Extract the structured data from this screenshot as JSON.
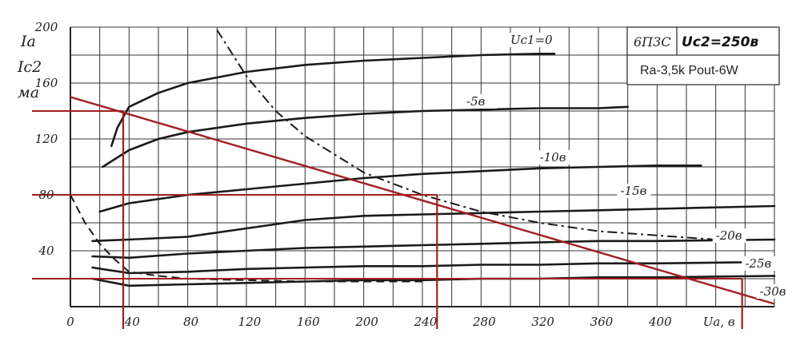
{
  "chart_data": {
    "type": "line",
    "tube": "6П3С",
    "screen_voltage_label": "Uc2=250в",
    "note": "Ra-3,5k  Pout-6W",
    "y_axis_labels": [
      "Ia",
      "Ic2",
      "ма"
    ],
    "x_axis_label": "Ua, в",
    "xlim": [
      0,
      480
    ],
    "ylim": [
      0,
      200
    ],
    "x_ticks": [
      0,
      40,
      80,
      120,
      160,
      200,
      240,
      280,
      320,
      360,
      400,
      440
    ],
    "x_tick_labels": [
      "0",
      "40",
      "80",
      "120",
      "160",
      "200",
      "240",
      "280",
      "320",
      "360",
      "400",
      "Ua, в"
    ],
    "y_ticks": [
      40,
      80,
      120,
      160,
      200
    ],
    "y_tick_labels": [
      "40",
      "80",
      "120",
      "160",
      "200"
    ],
    "grid": true,
    "plate_curves": [
      {
        "label": "Uc1=0",
        "x": [
          28,
          32,
          40,
          60,
          80,
          120,
          160,
          200,
          240,
          280,
          320,
          330
        ],
        "y": [
          115,
          128,
          143,
          153,
          160,
          168,
          173,
          176,
          178,
          180,
          181,
          181
        ]
      },
      {
        "label": "-5в",
        "x": [
          22,
          40,
          60,
          80,
          120,
          160,
          200,
          240,
          280,
          320,
          360,
          380
        ],
        "y": [
          100,
          112,
          120,
          125,
          131,
          135,
          138,
          140,
          141,
          142,
          142,
          143
        ]
      },
      {
        "label": "-10в",
        "x": [
          20,
          40,
          80,
          120,
          160,
          200,
          240,
          280,
          320,
          360,
          400,
          430
        ],
        "y": [
          68,
          74,
          80,
          84,
          88,
          92,
          95,
          97,
          99,
          100,
          101,
          101
        ]
      },
      {
        "label": "-15в",
        "x": [
          15,
          40,
          80,
          120,
          160,
          200,
          240,
          280,
          320,
          360,
          400,
          480
        ],
        "y": [
          47,
          48,
          50,
          56,
          62,
          65,
          66,
          67,
          68,
          69,
          70,
          72
        ]
      },
      {
        "label": "-20в",
        "x": [
          15,
          40,
          80,
          120,
          160,
          200,
          240,
          280,
          320,
          360,
          400,
          480
        ],
        "y": [
          36,
          35,
          38,
          40,
          42,
          43,
          44,
          45,
          46,
          47,
          47,
          48
        ]
      },
      {
        "label": "-25в",
        "x": [
          15,
          40,
          80,
          120,
          160,
          200,
          240,
          280,
          320,
          360,
          400,
          480
        ],
        "y": [
          28,
          24,
          25,
          27,
          28,
          29,
          29,
          30,
          30,
          31,
          31,
          32
        ]
      },
      {
        "label": "-30в",
        "x": [
          15,
          40,
          80,
          120,
          160,
          200,
          240,
          280,
          320,
          360,
          400,
          480
        ],
        "y": [
          20,
          15,
          16,
          17,
          18,
          19,
          19,
          20,
          20,
          21,
          21,
          22
        ]
      }
    ],
    "screen_current_curve": {
      "style": "dashed",
      "x": [
        0,
        10,
        20,
        30,
        40,
        60,
        80,
        120,
        160,
        200,
        240
      ],
      "y": [
        80,
        60,
        45,
        34,
        25,
        22,
        20,
        19,
        18,
        18,
        18
      ]
    },
    "max_dissipation_curve": {
      "style": "dash-dot",
      "x": [
        100,
        120,
        140,
        160,
        200,
        240,
        280,
        320,
        360,
        400,
        440
      ],
      "y": [
        198,
        165,
        140,
        122,
        96,
        80,
        68,
        60,
        54,
        51,
        48
      ]
    },
    "load_line": {
      "color": "#a01e1e",
      "x": [
        0,
        480
      ],
      "y": [
        150,
        2
      ]
    },
    "operating_markers": {
      "color": "#a01e1e",
      "horizontal": [
        {
          "y": 140,
          "x_end": 36
        },
        {
          "y": 80,
          "x_end": 250
        },
        {
          "y": 20,
          "x_end": 458
        }
      ],
      "vertical": [
        {
          "x": 36,
          "y_top": 140
        },
        {
          "x": 250,
          "y_top": 80
        },
        {
          "x": 458,
          "y_top": 20
        }
      ]
    }
  }
}
